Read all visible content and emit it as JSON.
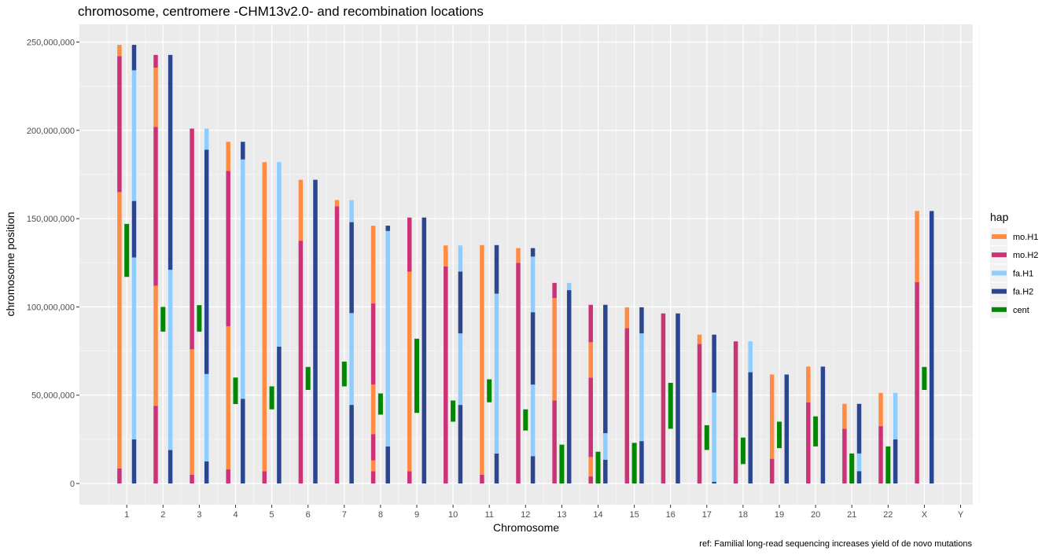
{
  "chart_data": {
    "type": "bar",
    "title": "chromosome, centromere -CHM13v2.0- and recombination locations",
    "xlabel": "Chromosome",
    "ylabel": "chromosome position",
    "caption": "ref: Familial long-read sequencing increases yield of de novo mutations",
    "categories": [
      "1",
      "2",
      "3",
      "4",
      "5",
      "6",
      "7",
      "8",
      "9",
      "10",
      "11",
      "12",
      "13",
      "14",
      "15",
      "16",
      "17",
      "18",
      "19",
      "20",
      "21",
      "22",
      "X",
      "Y"
    ],
    "ylim": [
      -12000000,
      260000000
    ],
    "yticks": [
      0,
      50000000,
      100000000,
      150000000,
      200000000,
      250000000
    ],
    "ytick_labels": [
      "0",
      "50,000,000",
      "100,000,000",
      "150,000,000",
      "200,000,000",
      "250,000,000"
    ],
    "grid": true,
    "legend": {
      "title": "hap",
      "position": "right",
      "entries": [
        {
          "name": "mo.H1",
          "color": "#FF8C42"
        },
        {
          "name": "mo.H2",
          "color": "#CC3377"
        },
        {
          "name": "fa.H1",
          "color": "#8ECEFF"
        },
        {
          "name": "fa.H2",
          "color": "#2B4590"
        },
        {
          "name": "cent",
          "color": "#008800"
        }
      ]
    },
    "series": [
      {
        "name": "mo",
        "offset": -1,
        "haps": [
          "mo.H1",
          "mo.H2"
        ],
        "segments": [
          [
            [
              0,
              8.5,
              "mo.H2"
            ],
            [
              8.5,
              165,
              "mo.H1"
            ],
            [
              165,
              242,
              "mo.H2"
            ],
            [
              242,
              248.4,
              "mo.H1"
            ]
          ],
          [
            [
              0,
              44,
              "mo.H2"
            ],
            [
              44,
              112,
              "mo.H1"
            ],
            [
              112,
              202,
              "mo.H2"
            ],
            [
              202,
              235.5,
              "mo.H1"
            ],
            [
              235.5,
              242.7,
              "mo.H2"
            ]
          ],
          [
            [
              0,
              5,
              "mo.H2"
            ],
            [
              5,
              76,
              "mo.H1"
            ],
            [
              76,
              201,
              "mo.H2"
            ]
          ],
          [
            [
              0,
              8,
              "mo.H2"
            ],
            [
              8,
              89,
              "mo.H1"
            ],
            [
              89,
              177,
              "mo.H2"
            ],
            [
              177,
              193.5,
              "mo.H1"
            ]
          ],
          [
            [
              0,
              7,
              "mo.H2"
            ],
            [
              7,
              182,
              "mo.H1"
            ]
          ],
          [
            [
              0,
              137.5,
              "mo.H2"
            ],
            [
              137.5,
              172,
              "mo.H1"
            ]
          ],
          [
            [
              0,
              157,
              "mo.H2"
            ],
            [
              157,
              160.5,
              "mo.H1"
            ]
          ],
          [
            [
              0,
              7,
              "mo.H2"
            ],
            [
              7,
              13,
              "mo.H1"
            ],
            [
              13,
              28,
              "mo.H2"
            ],
            [
              28,
              56,
              "mo.H1"
            ],
            [
              56,
              102,
              "mo.H2"
            ],
            [
              102,
              146,
              "mo.H1"
            ]
          ],
          [
            [
              0,
              7,
              "mo.H2"
            ],
            [
              7,
              120,
              "mo.H1"
            ],
            [
              120,
              150.6,
              "mo.H2"
            ]
          ],
          [
            [
              0,
              123,
              "mo.H2"
            ],
            [
              123,
              134.8,
              "mo.H1"
            ]
          ],
          [
            [
              0,
              5,
              "mo.H2"
            ],
            [
              5,
              135,
              "mo.H1"
            ]
          ],
          [
            [
              0,
              125,
              "mo.H2"
            ],
            [
              125,
              133.3,
              "mo.H1"
            ]
          ],
          [
            [
              0,
              47,
              "mo.H2"
            ],
            [
              47,
              105,
              "mo.H1"
            ],
            [
              105,
              113.6,
              "mo.H2"
            ]
          ],
          [
            [
              0,
              4,
              "mo.H2"
            ],
            [
              4,
              15,
              "mo.H1"
            ],
            [
              15,
              60,
              "mo.H2"
            ],
            [
              60,
              80,
              "mo.H1"
            ],
            [
              80,
              101.2,
              "mo.H2"
            ]
          ],
          [
            [
              0,
              88,
              "mo.H2"
            ],
            [
              88,
              99.8,
              "mo.H1"
            ]
          ],
          [
            [
              0,
              96.3,
              "mo.H2"
            ]
          ],
          [
            [
              0,
              79,
              "mo.H2"
            ],
            [
              79,
              84.3,
              "mo.H1"
            ]
          ],
          [
            [
              0,
              80.5,
              "mo.H2"
            ]
          ],
          [
            [
              0,
              14,
              "mo.H2"
            ],
            [
              14,
              61.7,
              "mo.H1"
            ]
          ],
          [
            [
              0,
              46,
              "mo.H2"
            ],
            [
              46,
              66.2,
              "mo.H1"
            ]
          ],
          [
            [
              0,
              31,
              "mo.H2"
            ],
            [
              31,
              45.1,
              "mo.H1"
            ]
          ],
          [
            [
              0,
              32.5,
              "mo.H2"
            ],
            [
              32.5,
              51.3,
              "mo.H1"
            ]
          ],
          [
            [
              0,
              114,
              "mo.H2"
            ],
            [
              114,
              154.3,
              "mo.H1"
            ]
          ],
          []
        ]
      },
      {
        "name": "cent",
        "offset": 0,
        "haps": [
          "cent"
        ],
        "segments": [
          [
            [
              117,
              147,
              "cent"
            ]
          ],
          [
            [
              86,
              100,
              "cent"
            ]
          ],
          [
            [
              86,
              101,
              "cent"
            ]
          ],
          [
            [
              45,
              60,
              "cent"
            ]
          ],
          [
            [
              42,
              55,
              "cent"
            ]
          ],
          [
            [
              53,
              66,
              "cent"
            ]
          ],
          [
            [
              55,
              69,
              "cent"
            ]
          ],
          [
            [
              39,
              51,
              "cent"
            ]
          ],
          [
            [
              40,
              82,
              "cent"
            ]
          ],
          [
            [
              35,
              47,
              "cent"
            ]
          ],
          [
            [
              46,
              59,
              "cent"
            ]
          ],
          [
            [
              30,
              42,
              "cent"
            ]
          ],
          [
            [
              0,
              22,
              "cent"
            ]
          ],
          [
            [
              0,
              18,
              "cent"
            ]
          ],
          [
            [
              0,
              23,
              "cent"
            ]
          ],
          [
            [
              31,
              57,
              "cent"
            ]
          ],
          [
            [
              19,
              33,
              "cent"
            ]
          ],
          [
            [
              11,
              26,
              "cent"
            ]
          ],
          [
            [
              20,
              35,
              "cent"
            ]
          ],
          [
            [
              21,
              38,
              "cent"
            ]
          ],
          [
            [
              0,
              17,
              "cent"
            ]
          ],
          [
            [
              0,
              21,
              "cent"
            ]
          ],
          [
            [
              53,
              66,
              "cent"
            ]
          ],
          []
        ]
      },
      {
        "name": "fa",
        "offset": 1,
        "haps": [
          "fa.H1",
          "fa.H2"
        ],
        "segments": [
          [
            [
              0,
              25,
              "fa.H2"
            ],
            [
              25,
              128,
              "fa.H1"
            ],
            [
              128,
              160,
              "fa.H2"
            ],
            [
              160,
              234,
              "fa.H1"
            ],
            [
              234,
              248.4,
              "fa.H2"
            ]
          ],
          [
            [
              0,
              19,
              "fa.H2"
            ],
            [
              19,
              121,
              "fa.H1"
            ],
            [
              121,
              242.7,
              "fa.H2"
            ]
          ],
          [
            [
              0,
              12.5,
              "fa.H2"
            ],
            [
              12.5,
              62,
              "fa.H1"
            ],
            [
              62,
              189,
              "fa.H2"
            ],
            [
              189,
              201,
              "fa.H1"
            ]
          ],
          [
            [
              0,
              48,
              "fa.H2"
            ],
            [
              48,
              183.5,
              "fa.H1"
            ],
            [
              183.5,
              193.5,
              "fa.H2"
            ]
          ],
          [
            [
              0,
              77.5,
              "fa.H2"
            ],
            [
              77.5,
              182,
              "fa.H1"
            ]
          ],
          [
            [
              0,
              172,
              "fa.H2"
            ]
          ],
          [
            [
              0,
              44.5,
              "fa.H2"
            ],
            [
              44.5,
              96.5,
              "fa.H1"
            ],
            [
              96.5,
              148,
              "fa.H2"
            ],
            [
              148,
              160.5,
              "fa.H1"
            ]
          ],
          [
            [
              0,
              21,
              "fa.H2"
            ],
            [
              21,
              143,
              "fa.H1"
            ],
            [
              143,
              146,
              "fa.H2"
            ]
          ],
          [
            [
              0,
              150.6,
              "fa.H2"
            ]
          ],
          [
            [
              0,
              44.5,
              "fa.H2"
            ],
            [
              44.5,
              85,
              "fa.H1"
            ],
            [
              85,
              120,
              "fa.H2"
            ],
            [
              120,
              134.8,
              "fa.H1"
            ]
          ],
          [
            [
              0,
              17,
              "fa.H2"
            ],
            [
              17,
              107.5,
              "fa.H1"
            ],
            [
              107.5,
              135,
              "fa.H2"
            ]
          ],
          [
            [
              0,
              15.5,
              "fa.H2"
            ],
            [
              15.5,
              56,
              "fa.H1"
            ],
            [
              56,
              97,
              "fa.H2"
            ],
            [
              97,
              128.5,
              "fa.H1"
            ],
            [
              128.5,
              133.3,
              "fa.H2"
            ]
          ],
          [
            [
              0,
              109.5,
              "fa.H2"
            ],
            [
              109.5,
              113.6,
              "fa.H1"
            ]
          ],
          [
            [
              0,
              13.5,
              "fa.H2"
            ],
            [
              13.5,
              28.5,
              "fa.H1"
            ],
            [
              28.5,
              101.2,
              "fa.H2"
            ]
          ],
          [
            [
              0,
              24,
              "fa.H2"
            ],
            [
              24,
              85,
              "fa.H1"
            ],
            [
              85,
              99.8,
              "fa.H2"
            ]
          ],
          [
            [
              0,
              96.3,
              "fa.H2"
            ]
          ],
          [
            [
              0,
              1,
              "fa.H2"
            ],
            [
              1,
              51.5,
              "fa.H1"
            ],
            [
              51.5,
              84.3,
              "fa.H2"
            ]
          ],
          [
            [
              0,
              63,
              "fa.H2"
            ],
            [
              63,
              80.5,
              "fa.H1"
            ]
          ],
          [
            [
              0,
              61.7,
              "fa.H2"
            ]
          ],
          [
            [
              0,
              66.2,
              "fa.H2"
            ]
          ],
          [
            [
              0,
              7,
              "fa.H2"
            ],
            [
              7,
              17,
              "fa.H1"
            ],
            [
              17,
              45.1,
              "fa.H2"
            ]
          ],
          [
            [
              0,
              25,
              "fa.H2"
            ],
            [
              25,
              51.3,
              "fa.H1"
            ]
          ],
          [
            [
              0,
              154.3,
              "fa.H2"
            ]
          ],
          []
        ]
      }
    ]
  }
}
